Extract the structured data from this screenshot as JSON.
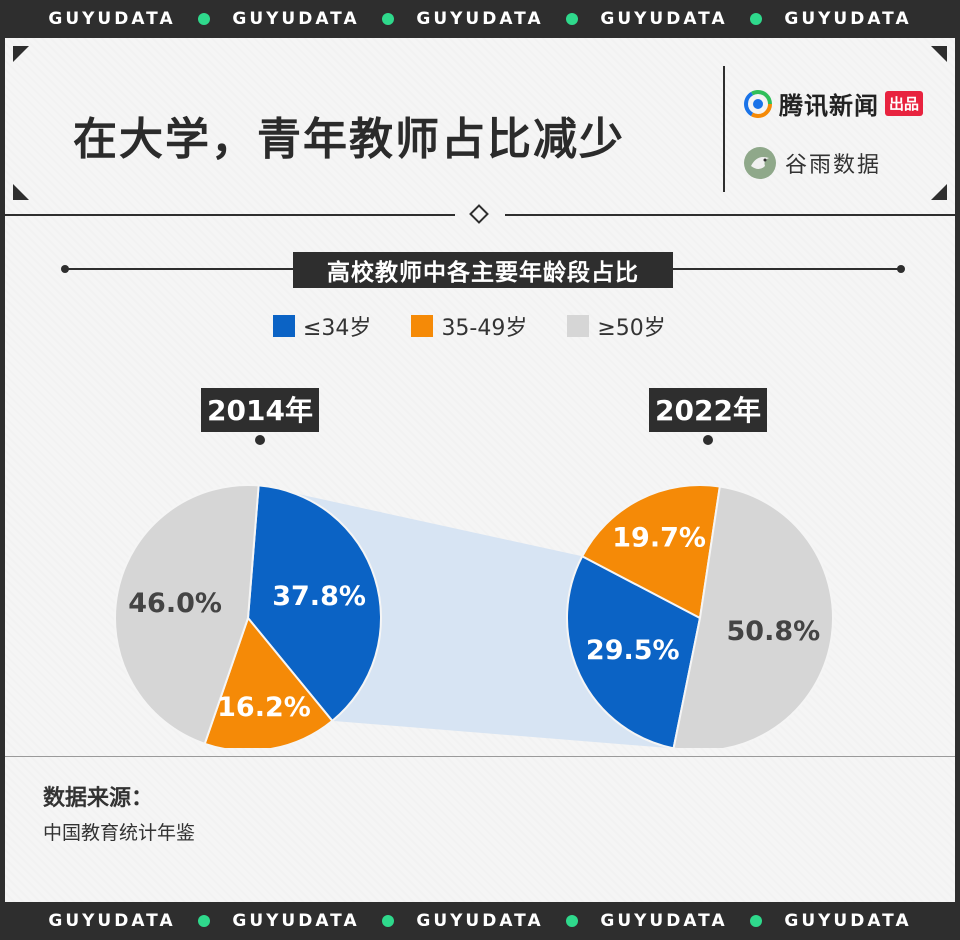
{
  "banner": {
    "text": "GUYUDATA",
    "repeat": 5,
    "dot_color": "#2fd98c"
  },
  "header": {
    "title": "在大学，青年教师占比减少",
    "logo_tencent_name": "腾讯新闻",
    "logo_tencent_badge": "出品",
    "logo_guyu_name": "谷雨数据"
  },
  "chart_data": {
    "type": "pie",
    "title": "高校教师中各主要年龄段占比",
    "legend": [
      "≤34岁",
      "35-49岁",
      "≥50岁"
    ],
    "colors": [
      "#0b63c5",
      "#f58a07",
      "#d6d6d6"
    ],
    "series": [
      {
        "name": "2014年",
        "values": [
          37.8,
          16.2,
          46.0
        ],
        "labels": [
          "37.8%",
          "16.2%",
          "46.0%"
        ]
      },
      {
        "name": "2022年",
        "values": [
          29.5,
          19.7,
          50.8
        ],
        "labels": [
          "29.5%",
          "19.7%",
          "50.8%"
        ]
      }
    ]
  },
  "source": {
    "label": "数据来源：",
    "value": "中国教育统计年鉴"
  }
}
